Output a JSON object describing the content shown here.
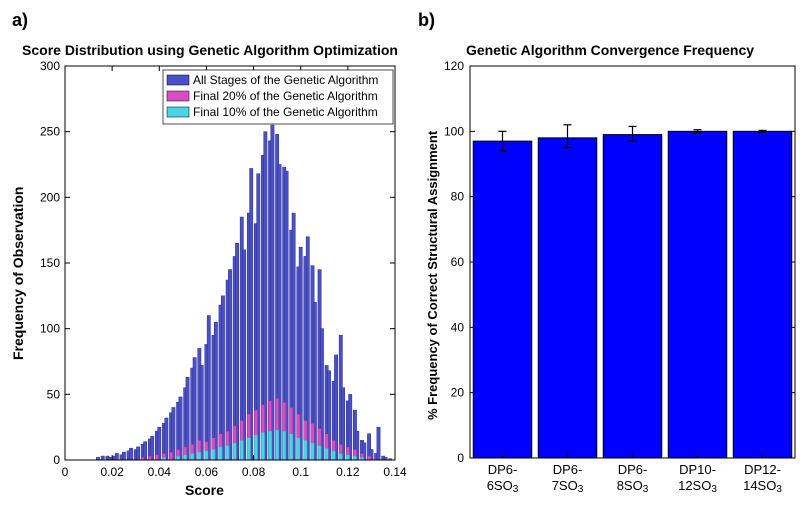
{
  "panel_a": {
    "label": "a)",
    "title": "Score Distribution using Genetic Algorithm Optimization",
    "title_fontsize": 14,
    "xlabel": "Score",
    "ylabel": "Frequency of Observation",
    "label_fontsize": 14,
    "xlim": [
      0,
      0.14
    ],
    "ylim": [
      0,
      300
    ],
    "xticks": [
      0,
      0.02,
      0.04,
      0.06,
      0.08,
      0.1,
      0.12,
      0.14
    ],
    "yticks": [
      0,
      50,
      100,
      150,
      200,
      250,
      300
    ],
    "background_color": "#ffffff",
    "axis_color": "#000000",
    "tick_fontsize": 12,
    "legend": {
      "items": [
        {
          "label": "All Stages of the Genetic Algorithm",
          "color": "#4b50c8"
        },
        {
          "label": "Final 20% of the Genetic Algorithm",
          "color": "#d94fc3"
        },
        {
          "label": "Final 10% of the Genetic Algorithm",
          "color": "#46d6e6"
        }
      ],
      "fontsize": 12,
      "border_color": "#000000"
    },
    "histogram": {
      "bin_width": 0.0014,
      "series": [
        {
          "name": "all",
          "color": "#4b50c8",
          "edge_color": "#2a2d8a",
          "data": [
            {
              "x": 0.014,
              "y": 2
            },
            {
              "x": 0.016,
              "y": 3
            },
            {
              "x": 0.018,
              "y": 3
            },
            {
              "x": 0.019,
              "y": 2
            },
            {
              "x": 0.021,
              "y": 3
            },
            {
              "x": 0.022,
              "y": 5
            },
            {
              "x": 0.024,
              "y": 4
            },
            {
              "x": 0.025,
              "y": 6
            },
            {
              "x": 0.027,
              "y": 7
            },
            {
              "x": 0.028,
              "y": 9
            },
            {
              "x": 0.03,
              "y": 8
            },
            {
              "x": 0.031,
              "y": 10
            },
            {
              "x": 0.033,
              "y": 12
            },
            {
              "x": 0.034,
              "y": 14
            },
            {
              "x": 0.036,
              "y": 16
            },
            {
              "x": 0.037,
              "y": 18
            },
            {
              "x": 0.039,
              "y": 22
            },
            {
              "x": 0.04,
              "y": 25
            },
            {
              "x": 0.042,
              "y": 28
            },
            {
              "x": 0.043,
              "y": 32
            },
            {
              "x": 0.045,
              "y": 36
            },
            {
              "x": 0.046,
              "y": 40
            },
            {
              "x": 0.048,
              "y": 44
            },
            {
              "x": 0.049,
              "y": 48
            },
            {
              "x": 0.051,
              "y": 55
            },
            {
              "x": 0.052,
              "y": 63
            },
            {
              "x": 0.054,
              "y": 70
            },
            {
              "x": 0.055,
              "y": 78
            },
            {
              "x": 0.057,
              "y": 85
            },
            {
              "x": 0.058,
              "y": 72
            },
            {
              "x": 0.06,
              "y": 88
            },
            {
              "x": 0.061,
              "y": 110
            },
            {
              "x": 0.063,
              "y": 95
            },
            {
              "x": 0.064,
              "y": 105
            },
            {
              "x": 0.066,
              "y": 118
            },
            {
              "x": 0.067,
              "y": 125
            },
            {
              "x": 0.069,
              "y": 137
            },
            {
              "x": 0.07,
              "y": 145
            },
            {
              "x": 0.072,
              "y": 155
            },
            {
              "x": 0.073,
              "y": 165
            },
            {
              "x": 0.075,
              "y": 185
            },
            {
              "x": 0.076,
              "y": 160
            },
            {
              "x": 0.078,
              "y": 188
            },
            {
              "x": 0.079,
              "y": 222
            },
            {
              "x": 0.081,
              "y": 180
            },
            {
              "x": 0.082,
              "y": 218
            },
            {
              "x": 0.084,
              "y": 232
            },
            {
              "x": 0.085,
              "y": 250
            },
            {
              "x": 0.087,
              "y": 243
            },
            {
              "x": 0.088,
              "y": 255
            },
            {
              "x": 0.09,
              "y": 248
            },
            {
              "x": 0.091,
              "y": 225
            },
            {
              "x": 0.093,
              "y": 223
            },
            {
              "x": 0.094,
              "y": 220
            },
            {
              "x": 0.096,
              "y": 175
            },
            {
              "x": 0.097,
              "y": 188
            },
            {
              "x": 0.099,
              "y": 147
            },
            {
              "x": 0.1,
              "y": 162
            },
            {
              "x": 0.102,
              "y": 155
            },
            {
              "x": 0.103,
              "y": 170
            },
            {
              "x": 0.105,
              "y": 148
            },
            {
              "x": 0.106,
              "y": 120
            },
            {
              "x": 0.108,
              "y": 145
            },
            {
              "x": 0.109,
              "y": 100
            },
            {
              "x": 0.111,
              "y": 72
            },
            {
              "x": 0.112,
              "y": 68
            },
            {
              "x": 0.114,
              "y": 60
            },
            {
              "x": 0.115,
              "y": 80
            },
            {
              "x": 0.117,
              "y": 95
            },
            {
              "x": 0.118,
              "y": 55
            },
            {
              "x": 0.12,
              "y": 45
            },
            {
              "x": 0.121,
              "y": 50
            },
            {
              "x": 0.123,
              "y": 38
            },
            {
              "x": 0.124,
              "y": 22
            },
            {
              "x": 0.126,
              "y": 15
            },
            {
              "x": 0.127,
              "y": 13
            },
            {
              "x": 0.129,
              "y": 20
            },
            {
              "x": 0.13,
              "y": 8
            },
            {
              "x": 0.132,
              "y": 5
            },
            {
              "x": 0.133,
              "y": 25
            },
            {
              "x": 0.135,
              "y": 3
            },
            {
              "x": 0.136,
              "y": 2
            },
            {
              "x": 0.138,
              "y": 1
            }
          ]
        },
        {
          "name": "final20",
          "color": "#d94fc3",
          "edge_color": "#a02890",
          "data": [
            {
              "x": 0.033,
              "y": 2
            },
            {
              "x": 0.036,
              "y": 3
            },
            {
              "x": 0.039,
              "y": 4
            },
            {
              "x": 0.042,
              "y": 5
            },
            {
              "x": 0.045,
              "y": 6
            },
            {
              "x": 0.048,
              "y": 8
            },
            {
              "x": 0.051,
              "y": 10
            },
            {
              "x": 0.054,
              "y": 12
            },
            {
              "x": 0.057,
              "y": 15
            },
            {
              "x": 0.06,
              "y": 14
            },
            {
              "x": 0.063,
              "y": 17
            },
            {
              "x": 0.066,
              "y": 20
            },
            {
              "x": 0.069,
              "y": 22
            },
            {
              "x": 0.072,
              "y": 26
            },
            {
              "x": 0.075,
              "y": 30
            },
            {
              "x": 0.078,
              "y": 35
            },
            {
              "x": 0.081,
              "y": 38
            },
            {
              "x": 0.084,
              "y": 42
            },
            {
              "x": 0.087,
              "y": 45
            },
            {
              "x": 0.09,
              "y": 47
            },
            {
              "x": 0.093,
              "y": 44
            },
            {
              "x": 0.096,
              "y": 40
            },
            {
              "x": 0.099,
              "y": 35
            },
            {
              "x": 0.102,
              "y": 30
            },
            {
              "x": 0.105,
              "y": 28
            },
            {
              "x": 0.108,
              "y": 24
            },
            {
              "x": 0.111,
              "y": 20
            },
            {
              "x": 0.114,
              "y": 15
            },
            {
              "x": 0.117,
              "y": 12
            },
            {
              "x": 0.12,
              "y": 10
            },
            {
              "x": 0.123,
              "y": 8
            },
            {
              "x": 0.126,
              "y": 5
            },
            {
              "x": 0.129,
              "y": 3
            }
          ]
        },
        {
          "name": "final10",
          "color": "#46d6e6",
          "edge_color": "#2aa8b5",
          "data": [
            {
              "x": 0.042,
              "y": 2
            },
            {
              "x": 0.048,
              "y": 3
            },
            {
              "x": 0.051,
              "y": 4
            },
            {
              "x": 0.054,
              "y": 5
            },
            {
              "x": 0.057,
              "y": 6
            },
            {
              "x": 0.06,
              "y": 7
            },
            {
              "x": 0.063,
              "y": 8
            },
            {
              "x": 0.066,
              "y": 10
            },
            {
              "x": 0.069,
              "y": 11
            },
            {
              "x": 0.072,
              "y": 13
            },
            {
              "x": 0.075,
              "y": 15
            },
            {
              "x": 0.078,
              "y": 17
            },
            {
              "x": 0.081,
              "y": 19
            },
            {
              "x": 0.084,
              "y": 21
            },
            {
              "x": 0.087,
              "y": 22
            },
            {
              "x": 0.09,
              "y": 23
            },
            {
              "x": 0.093,
              "y": 22
            },
            {
              "x": 0.096,
              "y": 20
            },
            {
              "x": 0.099,
              "y": 17
            },
            {
              "x": 0.102,
              "y": 15
            },
            {
              "x": 0.105,
              "y": 13
            },
            {
              "x": 0.108,
              "y": 11
            },
            {
              "x": 0.111,
              "y": 9
            },
            {
              "x": 0.114,
              "y": 7
            },
            {
              "x": 0.117,
              "y": 5
            },
            {
              "x": 0.12,
              "y": 4
            },
            {
              "x": 0.123,
              "y": 3
            },
            {
              "x": 0.126,
              "y": 2
            }
          ]
        }
      ]
    }
  },
  "panel_b": {
    "label": "b)",
    "title": "Genetic Algorithm Convergence Frequency",
    "title_fontsize": 14,
    "ylabel": "% Frequency of Correct Structural Assignment",
    "label_fontsize": 13,
    "ylim": [
      0,
      120
    ],
    "yticks": [
      0,
      20,
      40,
      60,
      80,
      100,
      120
    ],
    "background_color": "#ffffff",
    "axis_color": "#000000",
    "tick_fontsize": 12,
    "bar_chart": {
      "categories": [
        "DP6-6SO₃",
        "DP6-7SO₃",
        "DP6-8SO₃",
        "DP10-12SO₃",
        "DP12-14SO₃"
      ],
      "categories_plain": [
        "DP6-6SO3",
        "DP6-7SO3",
        "DP6-8SO3",
        "DP10-12SO3",
        "DP12-14SO3"
      ],
      "values": [
        97,
        98,
        99,
        100,
        100
      ],
      "error_pos": [
        3,
        4,
        2.5,
        0.5,
        0.3
      ],
      "error_neg": [
        3,
        3,
        2,
        0.5,
        0.3
      ],
      "bar_color": "#0000ff",
      "bar_edge_color": "#000000",
      "error_color": "#000000",
      "bar_width": 0.9
    }
  }
}
